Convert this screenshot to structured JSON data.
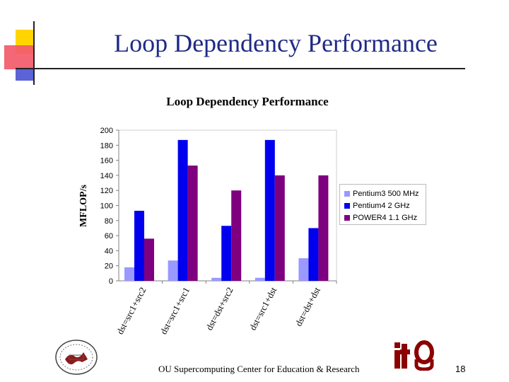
{
  "slide": {
    "title": "Loop Dependency Performance",
    "footer": "OU Supercomputing Center for Education & Research",
    "page_number": "18"
  },
  "colors": {
    "title": "#1f2a86",
    "series": [
      "#9999ff",
      "#0000ee",
      "#7f007f"
    ]
  },
  "chart_data": {
    "type": "bar",
    "title": "Loop Dependency Performance",
    "xlabel": "",
    "ylabel": "MFLOP/s",
    "ylim": [
      0,
      200
    ],
    "yticks": [
      0,
      20,
      40,
      60,
      80,
      100,
      120,
      140,
      160,
      180,
      200
    ],
    "grid": false,
    "legend_position": "right",
    "categories": [
      "dst=src1+src2",
      "dst=src1+src1",
      "dst=dst+src2",
      "dst=src1+dst",
      "dst=dst+dst"
    ],
    "series": [
      {
        "name": "Pentium3 500 MHz",
        "values": [
          18,
          27,
          4,
          4,
          30
        ]
      },
      {
        "name": "Pentium4 2 GHz",
        "values": [
          93,
          187,
          73,
          187,
          70
        ]
      },
      {
        "name": "POWER4 1.1 GHz",
        "values": [
          56,
          153,
          120,
          140,
          140
        ]
      }
    ]
  }
}
